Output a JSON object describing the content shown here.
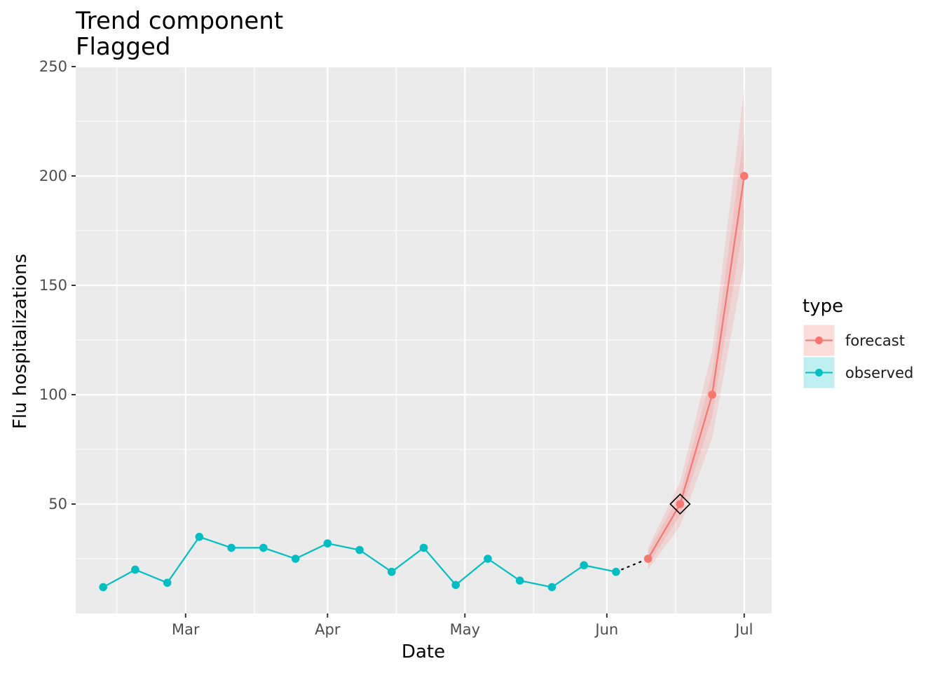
{
  "chart_data": {
    "type": "line",
    "title": "Trend component",
    "subtitle": "Flagged",
    "xlabel": "Date",
    "ylabel": "Flu hospitalizations",
    "ylim": [
      0,
      250
    ],
    "y_ticks": [
      50,
      100,
      150,
      200,
      250
    ],
    "xlim": [
      "2024-02-06",
      "2024-07-07"
    ],
    "x_ticks": [
      {
        "date": "2024-03-01",
        "label": "Mar"
      },
      {
        "date": "2024-04-01",
        "label": "Apr"
      },
      {
        "date": "2024-05-01",
        "label": "May"
      },
      {
        "date": "2024-06-01",
        "label": "Jun"
      },
      {
        "date": "2024-07-01",
        "label": "Jul"
      }
    ],
    "x_minor_ticks": [
      "2024-02-15",
      "2024-03-16",
      "2024-04-16",
      "2024-05-16",
      "2024-06-16"
    ],
    "grid": true,
    "legend": {
      "title": "type",
      "placement": "right",
      "entries": [
        "forecast",
        "observed"
      ]
    },
    "colors": {
      "forecast": "#f8766d",
      "observed": "#00bfc4",
      "panel": "#ebebeb",
      "grid": "#ffffff"
    },
    "series": [
      {
        "name": "observed",
        "x": [
          "2024-02-12",
          "2024-02-19",
          "2024-02-26",
          "2024-03-04",
          "2024-03-11",
          "2024-03-18",
          "2024-03-25",
          "2024-04-01",
          "2024-04-08",
          "2024-04-15",
          "2024-04-22",
          "2024-04-29",
          "2024-05-06",
          "2024-05-13",
          "2024-05-20",
          "2024-05-27",
          "2024-06-03"
        ],
        "y": [
          12,
          20,
          14,
          35,
          30,
          30,
          25,
          32,
          29,
          19,
          30,
          13,
          25,
          15,
          12,
          22,
          19
        ]
      },
      {
        "name": "forecast",
        "x": [
          "2024-06-10",
          "2024-06-17",
          "2024-06-24",
          "2024-07-01"
        ],
        "y": [
          25,
          50,
          100,
          200
        ],
        "lower": [
          20,
          40,
          80,
          160
        ],
        "upper": [
          30,
          60,
          120,
          240
        ],
        "inner_lower": [
          22,
          45,
          90,
          180
        ],
        "inner_upper": [
          28,
          55,
          110,
          220
        ]
      }
    ],
    "connector": {
      "style": "dotted",
      "from": {
        "x": "2024-06-03",
        "y": 19
      },
      "to": {
        "x": "2024-06-10",
        "y": 25
      }
    },
    "flag": {
      "shape": "diamond",
      "x": "2024-06-17",
      "y": 50
    }
  }
}
